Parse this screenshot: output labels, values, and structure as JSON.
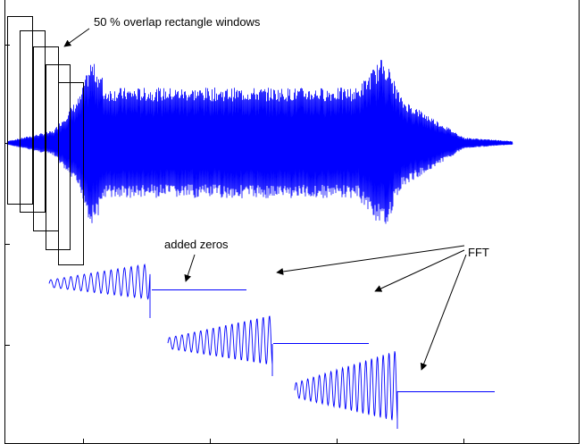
{
  "annotations": {
    "windows": "50 % overlap rectangle windows",
    "zeros": "added zeros",
    "fft": "FFT"
  },
  "colors": {
    "signal": "#0000ff",
    "axes": "#000000",
    "background": "#ffffff"
  },
  "diagram": {
    "main_signal": "chirp-like waveform with swelling envelope at both ends",
    "window_count": 5,
    "segment_count": 3
  }
}
